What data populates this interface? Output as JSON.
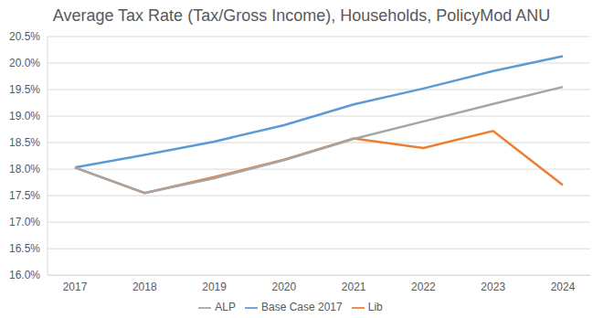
{
  "chart_data": {
    "type": "line",
    "title": "Average Tax Rate (Tax/Gross Income), Households, PolicyMod ANU",
    "categories": [
      "2017",
      "2018",
      "2019",
      "2020",
      "2021",
      "2022",
      "2023",
      "2024"
    ],
    "series": [
      {
        "name": "Base Case 2017",
        "color": "#5B9BD5",
        "values": [
          18.03,
          18.27,
          18.52,
          18.83,
          19.22,
          19.52,
          19.85,
          20.13
        ]
      },
      {
        "name": "Lib",
        "color": "#ED7D31",
        "values": [
          18.03,
          17.55,
          17.85,
          18.18,
          18.58,
          18.4,
          18.72,
          17.7
        ]
      },
      {
        "name": "ALP",
        "color": "#A5A5A5",
        "values": [
          18.03,
          17.55,
          17.83,
          18.17,
          18.57,
          18.9,
          19.23,
          19.55
        ]
      }
    ],
    "ylim": [
      16,
      20.5
    ],
    "yticks": [
      {
        "value": 16,
        "label": "16.0%"
      },
      {
        "value": 16.5,
        "label": "16.5%"
      },
      {
        "value": 17,
        "label": "17.0%"
      },
      {
        "value": 17.5,
        "label": "17.5%"
      },
      {
        "value": 18,
        "label": "18.0%"
      },
      {
        "value": 18.5,
        "label": "18.5%"
      },
      {
        "value": 19,
        "label": "19.0%"
      },
      {
        "value": 19.5,
        "label": "19.5%"
      },
      {
        "value": 20,
        "label": "20.0%"
      },
      {
        "value": 20.5,
        "label": "20.5%"
      }
    ],
    "grid": true,
    "legend": "bottom"
  }
}
